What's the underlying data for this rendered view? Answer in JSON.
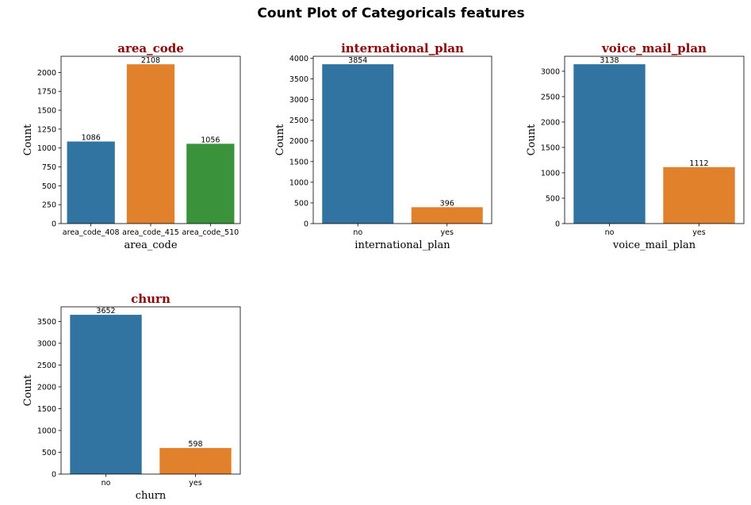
{
  "figure": {
    "title": "Count Plot of Categoricals features"
  },
  "chart_data": [
    {
      "type": "bar",
      "title": "area_code",
      "xlabel": "area_code",
      "ylabel": "Count",
      "categories": [
        "area_code_408",
        "area_code_415",
        "area_code_510"
      ],
      "values": [
        1086,
        2108,
        1056
      ],
      "data_labels": [
        "1086",
        "2108",
        "1056"
      ],
      "colors": [
        "#3274a1",
        "#e1812c",
        "#3a923a"
      ],
      "ylim": [
        0,
        2214
      ],
      "yticks": [
        0,
        250,
        500,
        750,
        1000,
        1250,
        1500,
        1750,
        2000
      ],
      "grid": false,
      "legend": "none"
    },
    {
      "type": "bar",
      "title": "international_plan",
      "xlabel": "international_plan",
      "ylabel": "Count",
      "categories": [
        "no",
        "yes"
      ],
      "values": [
        3854,
        396
      ],
      "data_labels": [
        "3854",
        "396"
      ],
      "colors": [
        "#3274a1",
        "#e1812c"
      ],
      "ylim": [
        0,
        4047
      ],
      "yticks": [
        0,
        500,
        1000,
        1500,
        2000,
        2500,
        3000,
        3500,
        4000
      ],
      "grid": false,
      "legend": "none"
    },
    {
      "type": "bar",
      "title": "voice_mail_plan",
      "xlabel": "voice_mail_plan",
      "ylabel": "Count",
      "categories": [
        "no",
        "yes"
      ],
      "values": [
        3138,
        1112
      ],
      "data_labels": [
        "3138",
        "1112"
      ],
      "colors": [
        "#3274a1",
        "#e1812c"
      ],
      "ylim": [
        0,
        3295
      ],
      "yticks": [
        0,
        500,
        1000,
        1500,
        2000,
        2500,
        3000
      ],
      "grid": false,
      "legend": "none"
    },
    {
      "type": "bar",
      "title": "churn",
      "xlabel": "churn",
      "ylabel": "Count",
      "categories": [
        "no",
        "yes"
      ],
      "values": [
        3652,
        598
      ],
      "data_labels": [
        "3652",
        "598"
      ],
      "colors": [
        "#3274a1",
        "#e1812c"
      ],
      "ylim": [
        0,
        3835
      ],
      "yticks": [
        0,
        500,
        1000,
        1500,
        2000,
        2500,
        3000,
        3500
      ],
      "grid": false,
      "legend": "none"
    }
  ]
}
